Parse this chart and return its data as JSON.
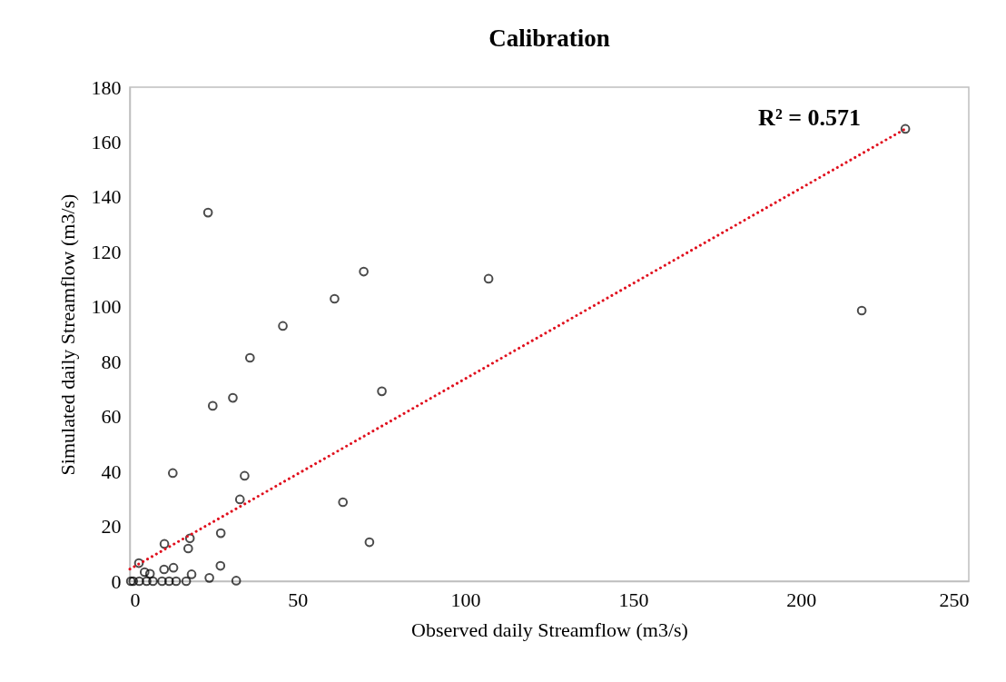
{
  "chart_data": {
    "type": "scatter",
    "title": "Calibration",
    "xlabel": "Observed daily Streamflow (m3/s)",
    "ylabel": "Simulated daily Streamflow (m3/s)",
    "xlim": [
      0,
      250
    ],
    "xticks": [
      0,
      50,
      100,
      150,
      200,
      250
    ],
    "ylim": [
      0,
      180
    ],
    "yticks": [
      0,
      20,
      40,
      60,
      80,
      100,
      120,
      140,
      160,
      180
    ],
    "grid": false,
    "annotations": [
      "R² = 0.571"
    ],
    "series": [
      {
        "marker": "circle",
        "color": "#000000",
        "x": [
          231.1,
          23.3,
          69.7,
          106.9,
          61.0,
          218.1,
          45.6,
          35.8,
          30.7,
          75.1,
          24.7,
          12.8,
          34.2,
          32.8,
          63.5,
          27.1,
          17.9,
          10.3,
          17.4,
          71.4,
          2.7,
          4.4,
          6.0,
          10.2,
          13.0,
          18.4,
          27.0,
          23.7,
          31.7,
          0.3,
          1.0,
          2.8,
          5.0,
          6.9,
          9.6,
          11.7,
          13.8,
          16.8
        ],
        "values": [
          164.8,
          134.3,
          112.8,
          110.2,
          102.9,
          98.6,
          93.0,
          81.4,
          66.8,
          69.2,
          63.9,
          39.4,
          38.4,
          29.8,
          28.8,
          17.5,
          15.6,
          13.6,
          11.9,
          14.2,
          6.6,
          3.3,
          2.7,
          4.3,
          4.9,
          2.5,
          5.6,
          1.2,
          0.2,
          0,
          0,
          0,
          0,
          0,
          0,
          0,
          0,
          0
        ]
      },
      {
        "type": "line",
        "color": "#e0101e",
        "line_style": "dotted",
        "x": [
          0,
          231.1
        ],
        "values": [
          4.4,
          164.8
        ]
      }
    ]
  }
}
